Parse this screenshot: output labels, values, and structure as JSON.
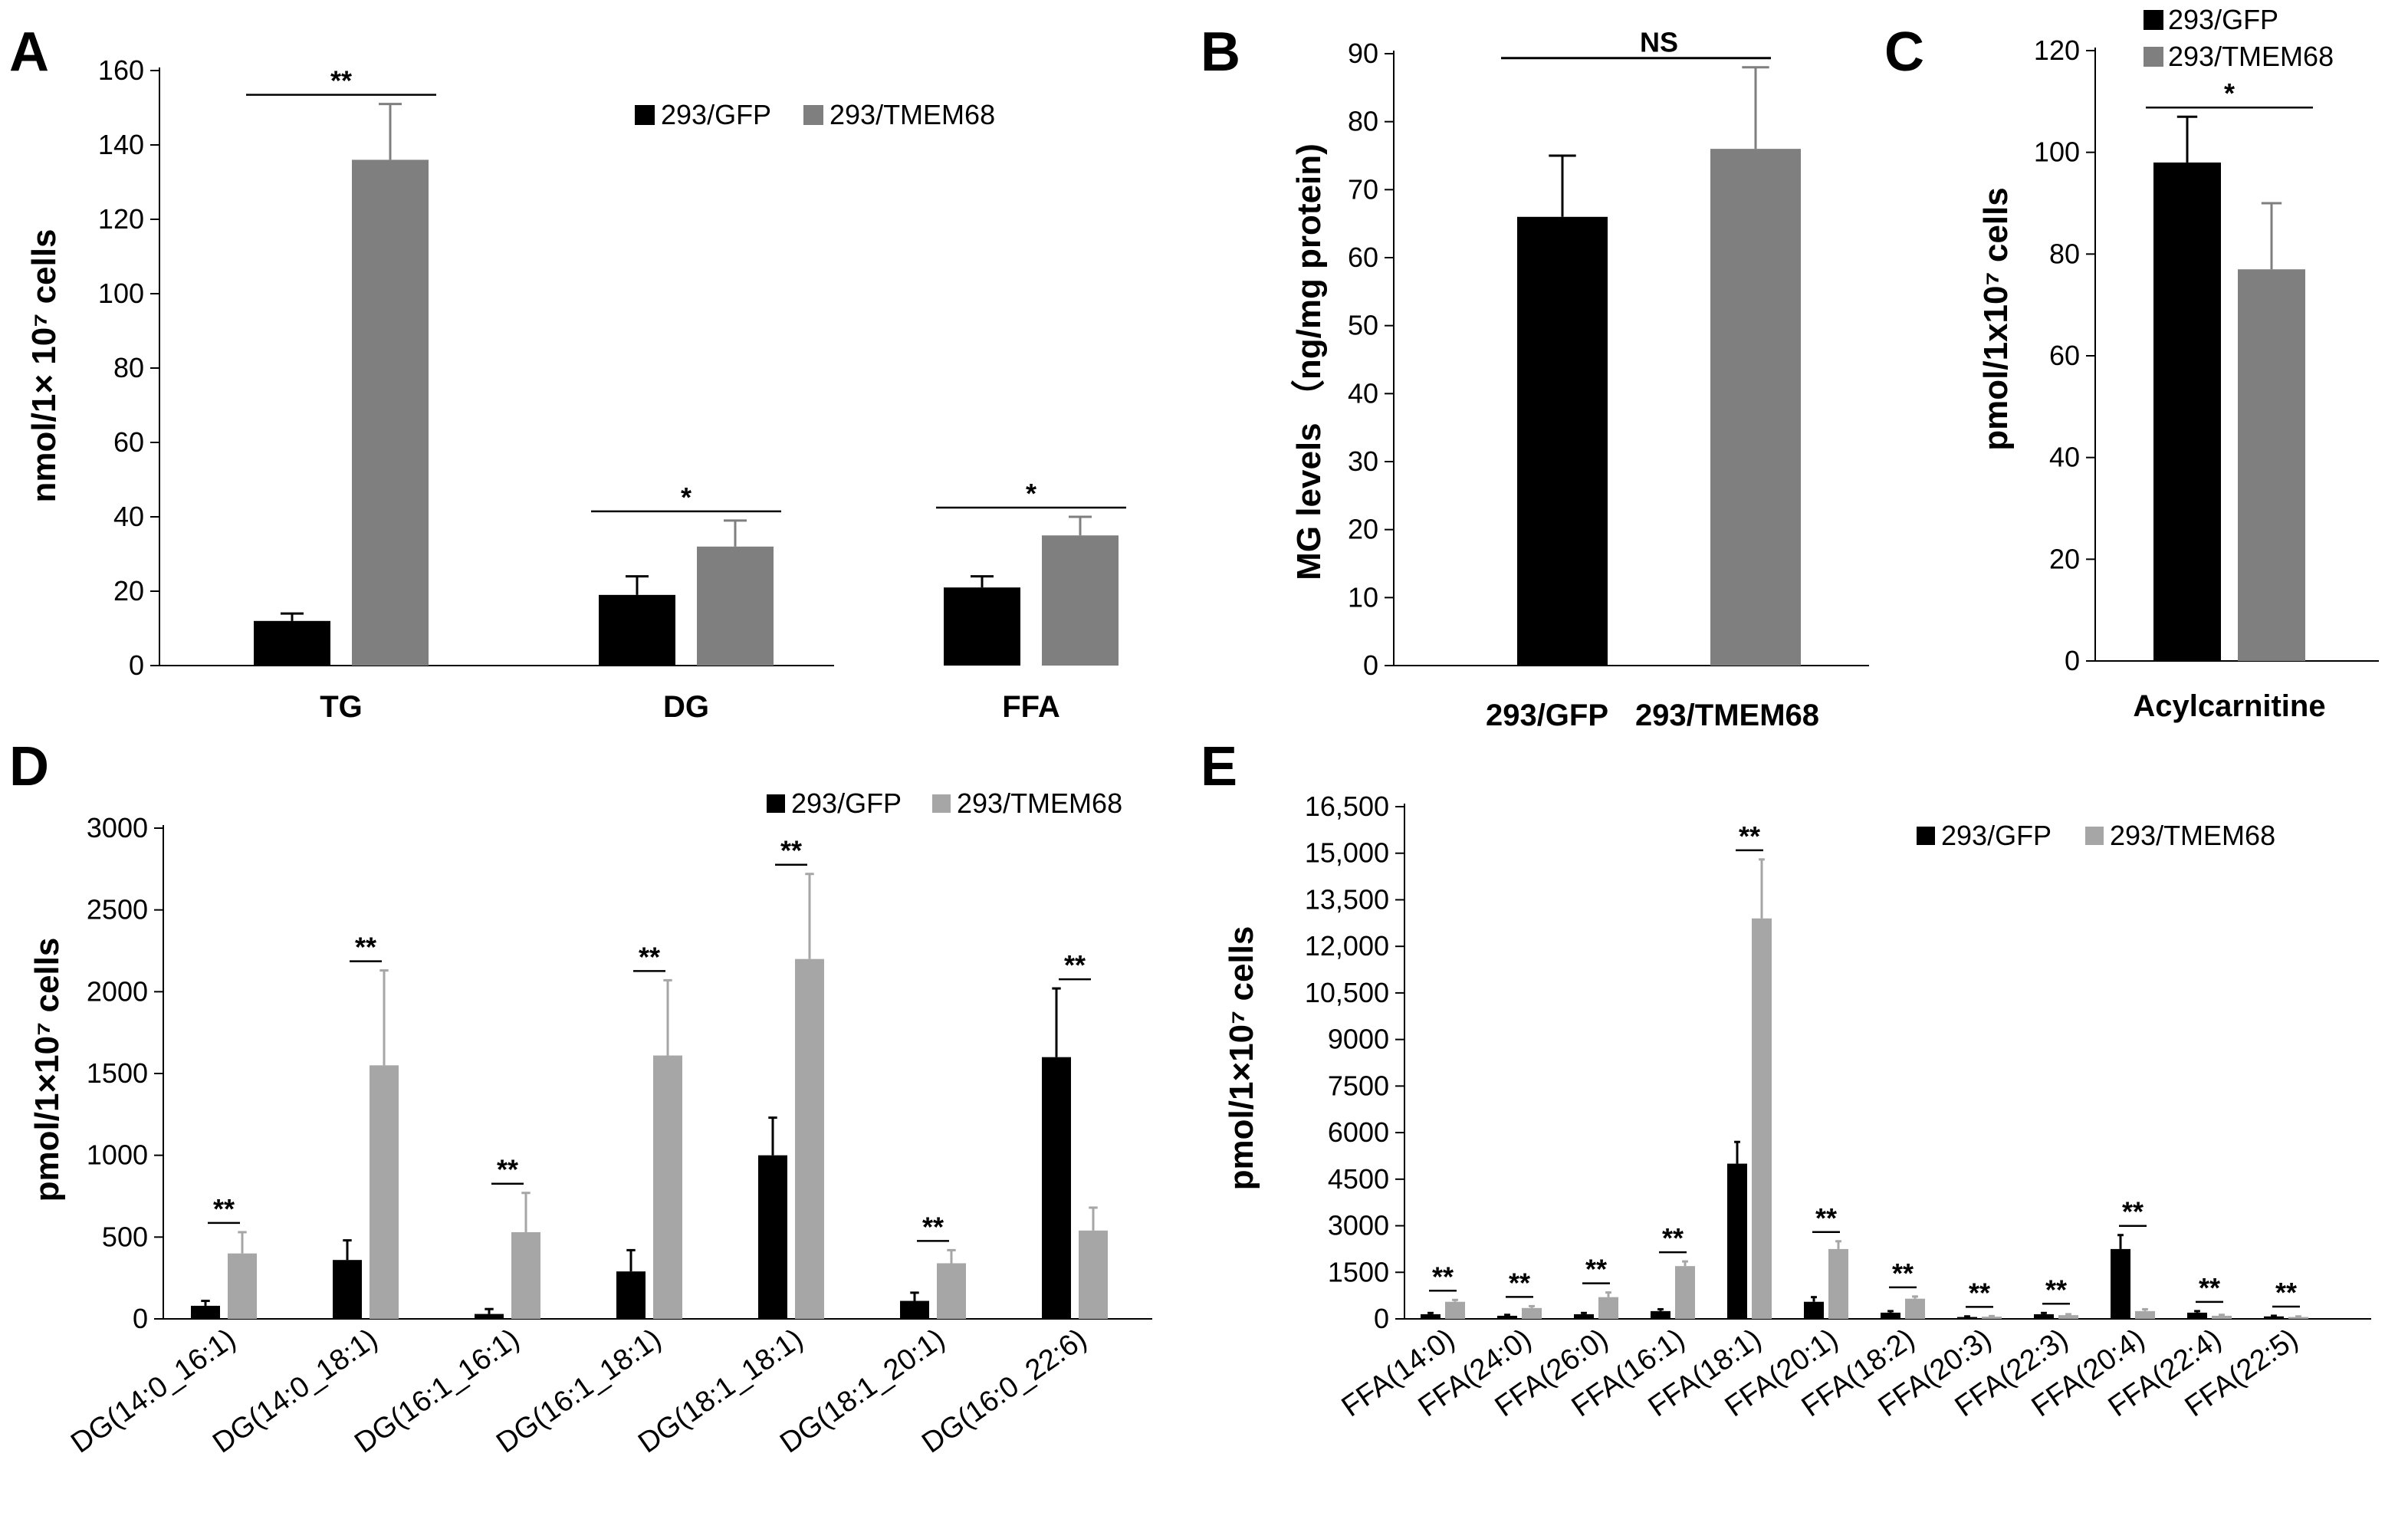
{
  "colors": {
    "gfp": "#000000",
    "tmem_dark": "#7f7f7f",
    "tmem_light": "#a6a6a6",
    "axis": "#000000"
  },
  "chart_data": [
    {
      "panel": "A",
      "type": "bar",
      "ylabel": "nmol/1× 10⁷ cells",
      "ylim": [
        0,
        160
      ],
      "yticks": [
        0,
        20,
        40,
        60,
        80,
        100,
        120,
        140,
        160
      ],
      "categories": [
        "TG",
        "DG",
        "FFA"
      ],
      "series": [
        {
          "name": "293/GFP",
          "values": [
            12,
            19,
            21
          ],
          "errors": [
            2,
            5,
            3
          ]
        },
        {
          "name": "293/TMEM68",
          "values": [
            136,
            32,
            35
          ],
          "errors": [
            15,
            7,
            5
          ]
        }
      ],
      "significance": [
        "**",
        "*",
        "*"
      ],
      "legend": [
        "293/GFP",
        "293/TMEM68"
      ]
    },
    {
      "panel": "B",
      "type": "bar",
      "ylabel": "MG levels （ng/mg protein)",
      "ylim": [
        0,
        90
      ],
      "yticks": [
        0,
        10,
        20,
        30,
        40,
        50,
        60,
        70,
        80,
        90
      ],
      "categories": [
        "293/GFP",
        "293/TMEM68"
      ],
      "series": [
        {
          "name": "MG",
          "values": [
            66,
            76
          ],
          "errors": [
            9,
            12
          ]
        }
      ],
      "significance": [
        "NS"
      ]
    },
    {
      "panel": "C",
      "type": "bar",
      "ylabel": "pmol/1x10⁷ cells",
      "ylim": [
        0,
        120
      ],
      "yticks": [
        0,
        20,
        40,
        60,
        80,
        100,
        120
      ],
      "categories": [
        "Acylcarnitine"
      ],
      "series": [
        {
          "name": "293/GFP",
          "values": [
            98
          ],
          "errors": [
            9
          ]
        },
        {
          "name": "293/TMEM68",
          "values": [
            77
          ],
          "errors": [
            13
          ]
        }
      ],
      "significance": [
        "*"
      ],
      "legend": [
        "293/GFP",
        "293/TMEM68"
      ]
    },
    {
      "panel": "D",
      "type": "bar",
      "ylabel": "pmol/1×10⁷ cells",
      "ylim": [
        0,
        3000
      ],
      "yticks": [
        0,
        500,
        1000,
        1500,
        2000,
        2500,
        3000
      ],
      "categories": [
        "DG(14:0_16:1)",
        "DG(14:0_18:1)",
        "DG(16:1_16:1)",
        "DG(16:1_18:1)",
        "DG(18:1_18:1)",
        "DG(18:1_20:1)",
        "DG(16:0_22:6)"
      ],
      "series": [
        {
          "name": "293/GFP",
          "values": [
            80,
            360,
            30,
            290,
            1000,
            110,
            1600
          ],
          "errors": [
            30,
            120,
            30,
            130,
            230,
            50,
            420
          ]
        },
        {
          "name": "293/TMEM68",
          "values": [
            400,
            1550,
            530,
            1610,
            2200,
            340,
            540
          ],
          "errors": [
            130,
            580,
            240,
            460,
            520,
            80,
            140
          ]
        }
      ],
      "significance": [
        "**",
        "**",
        "**",
        "**",
        "**",
        "**",
        "**"
      ],
      "legend": [
        "293/GFP",
        "293/TMEM68"
      ]
    },
    {
      "panel": "E",
      "type": "bar",
      "ylabel": "pmol/1×10⁷ cells",
      "ylim": [
        0,
        16500
      ],
      "yticks": [
        0,
        1500,
        3000,
        4500,
        6000,
        7500,
        9000,
        10500,
        12000,
        13500,
        15000,
        16500
      ],
      "ytick_labels": [
        "0",
        "1500",
        "3000",
        "4500",
        "6000",
        "7500",
        "9000",
        "10,500",
        "12,000",
        "13,500",
        "15,000",
        "16,500"
      ],
      "categories": [
        "FFA(14:0)",
        "FFA(24:0)",
        "FFA(26:0)",
        "FFA(16:1)",
        "FFA(18:1)",
        "FFA(20:1)",
        "FFA(18:2)",
        "FFA(20:3)",
        "FFA(22:3)",
        "FFA(20:4)",
        "FFA(22:4)",
        "FFA(22:5)"
      ],
      "series": [
        {
          "name": "293/GFP",
          "values": [
            150,
            100,
            150,
            250,
            5000,
            550,
            200,
            60,
            150,
            2250,
            200,
            80
          ],
          "errors": [
            40,
            30,
            40,
            60,
            700,
            150,
            50,
            20,
            40,
            450,
            50,
            20
          ]
        },
        {
          "name": "293/TMEM68",
          "values": [
            550,
            350,
            700,
            1700,
            12900,
            2250,
            650,
            70,
            120,
            250,
            100,
            60
          ],
          "errors": [
            60,
            60,
            150,
            150,
            1900,
            250,
            70,
            20,
            30,
            60,
            30,
            20
          ]
        }
      ],
      "significance": [
        "**",
        "**",
        "**",
        "**",
        "**",
        "**",
        "**",
        "**",
        "**",
        "**",
        "**",
        "**"
      ],
      "legend": [
        "293/GFP",
        "293/TMEM68"
      ]
    }
  ]
}
